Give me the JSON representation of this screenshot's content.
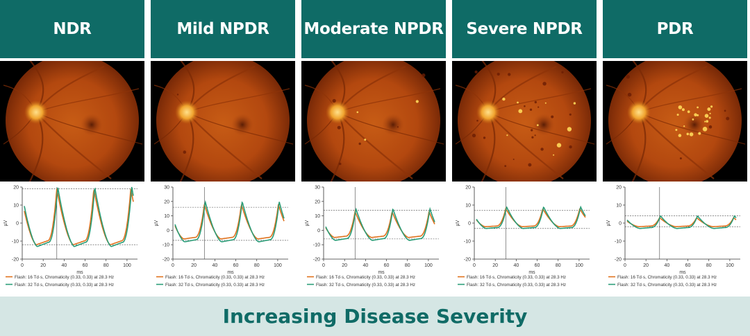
{
  "footer": {
    "text": "Increasing Disease Severity"
  },
  "colors": {
    "header_bg": "#0f6b66",
    "footer_bg": "#d5e6e4",
    "orange": "#e0711c",
    "green": "#2a9d78"
  },
  "panels": [
    {
      "title": "NDR",
      "lesions": "none",
      "chart_data": {
        "type": "line",
        "xlabel": "ms",
        "ylabel": "µV",
        "xlim": [
          0,
          110
        ],
        "ylim": [
          -20,
          20
        ],
        "yticks": [
          -20,
          -10,
          0,
          10,
          20
        ],
        "xticks": [
          0,
          20,
          40,
          60,
          80,
          100
        ],
        "ref_lines": {
          "upper_y": 19,
          "lower_y": -12,
          "vertical_x": 33
        },
        "series": [
          {
            "name": "Flash: 16 Td·s, Chromaticity (0.33, 0.33) at 28.3 Hz",
            "peak": 19,
            "trough": -12,
            "shift": 0
          },
          {
            "name": "Flash: 32 Td·s, Chromaticity (0.33, 0.33) at 28.3 Hz",
            "peak": 20,
            "trough": -13,
            "shift": 0.9
          }
        ]
      }
    },
    {
      "title": "Mild NPDR",
      "lesions": "few",
      "chart_data": {
        "type": "line",
        "xlabel": "ms",
        "ylabel": "µV",
        "xlim": [
          0,
          110
        ],
        "ylim": [
          -20,
          30
        ],
        "yticks": [
          -20,
          -10,
          0,
          10,
          20,
          30
        ],
        "xticks": [
          0,
          20,
          40,
          60,
          80,
          100
        ],
        "ref_lines": {
          "upper_y": 16,
          "lower_y": -7,
          "vertical_x": 30
        },
        "series": [
          {
            "name": "Flash: 16 Td·s, Chromaticity (0.33, 0.33) at 28.3 Hz",
            "peak": 18,
            "trough": -6,
            "shift": 0
          },
          {
            "name": "Flash: 32 Td·s, Chromaticity (0.33, 0.33) at 28.3 Hz",
            "peak": 20,
            "trough": -8,
            "shift": 0.8
          }
        ]
      }
    },
    {
      "title": "Moderate NPDR",
      "lesions": "some",
      "chart_data": {
        "type": "line",
        "xlabel": "ms",
        "ylabel": "µV",
        "xlim": [
          0,
          110
        ],
        "ylim": [
          -20,
          30
        ],
        "yticks": [
          -20,
          -10,
          0,
          10,
          20,
          30
        ],
        "xticks": [
          0,
          20,
          40,
          60,
          80,
          100
        ],
        "ref_lines": {
          "upper_y": 14,
          "lower_y": -6,
          "vertical_x": 30
        },
        "series": [
          {
            "name": "Flash: 16 Td·s, Chromaticity (0.33, 0.33) at 28.3 Hz",
            "peak": 13,
            "trough": -5,
            "shift": 0
          },
          {
            "name": "Flash: 32 Td·s, Chromaticity (0.33, 0.33) at 28.3 Hz",
            "peak": 15,
            "trough": -7,
            "shift": 0.8
          }
        ]
      }
    },
    {
      "title": "Severe NPDR",
      "lesions": "many",
      "chart_data": {
        "type": "line",
        "xlabel": "ms",
        "ylabel": "µV",
        "xlim": [
          0,
          110
        ],
        "ylim": [
          -20,
          20
        ],
        "yticks": [
          -20,
          -10,
          0,
          10,
          20
        ],
        "xticks": [
          0,
          20,
          40,
          60,
          80,
          100
        ],
        "ref_lines": {
          "upper_y": 7,
          "lower_y": -3,
          "vertical_x": 30
        },
        "series": [
          {
            "name": "Flash: 16 Td·s, Chromaticity (0.33, 0.33) at 28.3 Hz",
            "peak": 8,
            "trough": -2,
            "shift": 0
          },
          {
            "name": "Flash: 32 Td·s, Chromaticity (0.33, 0.33) at 28.3 Hz",
            "peak": 9,
            "trough": -3,
            "shift": 0.8
          }
        ]
      }
    },
    {
      "title": "PDR",
      "lesions": "exudates",
      "chart_data": {
        "type": "line",
        "xlabel": "ms",
        "ylabel": "µV",
        "xlim": [
          0,
          110
        ],
        "ylim": [
          -20,
          20
        ],
        "yticks": [
          -20,
          -10,
          0,
          10,
          20
        ],
        "xticks": [
          0,
          20,
          40,
          60,
          80,
          100
        ],
        "ref_lines": {
          "upper_y": 4,
          "lower_y": -2,
          "vertical_x": 33
        },
        "series": [
          {
            "name": "Flash: 16 Td·s, Chromaticity (0.33, 0.33) at 28.3 Hz",
            "peak": 3,
            "trough": -2,
            "shift": 0
          },
          {
            "name": "Flash: 32 Td·s, Chromaticity (0.33, 0.33) at 28.3 Hz",
            "peak": 4,
            "trough": -3,
            "shift": 0.8
          }
        ]
      }
    }
  ]
}
